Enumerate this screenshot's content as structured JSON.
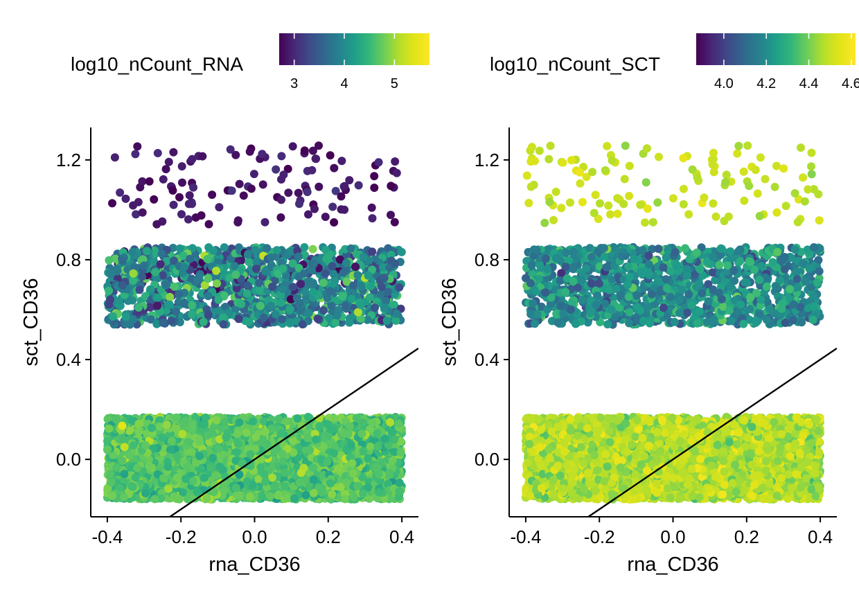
{
  "chart_data": [
    {
      "type": "scatter",
      "panel": "left",
      "xlabel": "rna_CD36",
      "ylabel": "sct_CD36",
      "xlim": [
        -0.445,
        0.445
      ],
      "ylim": [
        -0.23,
        1.33
      ],
      "x_ticks": [
        -0.4,
        -0.2,
        0.0,
        0.2,
        0.4
      ],
      "x_tick_labels": [
        "-0.4",
        "-0.2",
        "0.0",
        "0.2",
        "0.4"
      ],
      "y_ticks": [
        0.0,
        0.4,
        0.8,
        1.2
      ],
      "y_tick_labels": [
        "0.0",
        "0.4",
        "0.8",
        "1.2"
      ],
      "color_variable": "log10_nCount_RNA",
      "colorbar": {
        "title": "log10_nCount_RNA",
        "range": [
          2.7,
          5.7
        ],
        "ticks": [
          3,
          4,
          5
        ],
        "tick_labels": [
          "3",
          "4",
          "5"
        ],
        "palette": "viridis"
      },
      "reference_line": {
        "intercept": 0,
        "slope": 1
      },
      "groups": [
        {
          "name": "sct_CD36 ≈ 1.1",
          "x_range": [
            -0.4,
            0.4
          ],
          "y_range": [
            0.94,
            1.26
          ],
          "n_points": 120,
          "color_mean": 2.85,
          "color_sd": 0.12
        },
        {
          "name": "sct_CD36 ≈ 0.7",
          "x_range": [
            -0.4,
            0.4
          ],
          "y_range": [
            0.54,
            0.85
          ],
          "n_points": 1300,
          "color_mean": 3.9,
          "color_sd": 0.45
        },
        {
          "name": "sct_CD36 ≈ 0.0",
          "x_range": [
            -0.4,
            0.4
          ],
          "y_range": [
            -0.16,
            0.17
          ],
          "n_points": 4500,
          "color_mean": 4.65,
          "color_sd": 0.18
        }
      ]
    },
    {
      "type": "scatter",
      "panel": "right",
      "xlabel": "rna_CD36",
      "ylabel": "sct_CD36",
      "xlim": [
        -0.445,
        0.445
      ],
      "ylim": [
        -0.23,
        1.33
      ],
      "x_ticks": [
        -0.4,
        -0.2,
        0.0,
        0.2,
        0.4
      ],
      "x_tick_labels": [
        "-0.4",
        "-0.2",
        "0.0",
        "0.2",
        "0.4"
      ],
      "y_ticks": [
        0.0,
        0.4,
        0.8,
        1.2
      ],
      "y_tick_labels": [
        "0.0",
        "0.4",
        "0.8",
        "1.2"
      ],
      "color_variable": "log10_nCount_SCT",
      "colorbar": {
        "title": "log10_nCount_SCT",
        "range": [
          3.87,
          4.62
        ],
        "ticks": [
          4.0,
          4.2,
          4.4,
          4.6
        ],
        "tick_labels": [
          "4.0",
          "4.2",
          "4.4",
          "4.6"
        ],
        "palette": "viridis"
      },
      "reference_line": {
        "intercept": 0,
        "slope": 1
      },
      "groups": [
        {
          "name": "sct_CD36 ≈ 1.1",
          "x_range": [
            -0.4,
            0.4
          ],
          "y_range": [
            0.94,
            1.26
          ],
          "n_points": 120,
          "color_mean": 4.5,
          "color_sd": 0.03
        },
        {
          "name": "sct_CD36 ≈ 0.7",
          "x_range": [
            -0.4,
            0.4
          ],
          "y_range": [
            0.54,
            0.85
          ],
          "n_points": 1300,
          "color_mean": 4.2,
          "color_sd": 0.08
        },
        {
          "name": "sct_CD36 ≈ 0.0",
          "x_range": [
            -0.4,
            0.4
          ],
          "y_range": [
            -0.16,
            0.17
          ],
          "n_points": 4500,
          "color_mean": 4.47,
          "color_sd": 0.05
        }
      ]
    }
  ]
}
